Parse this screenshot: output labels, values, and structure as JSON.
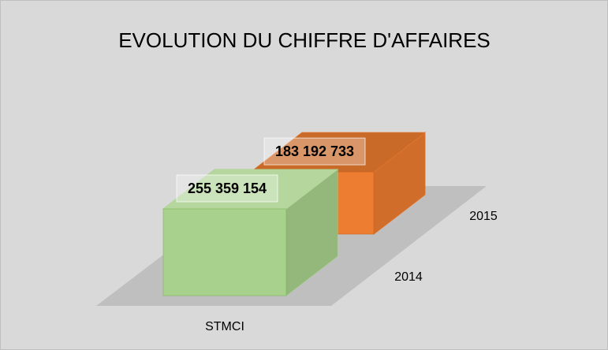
{
  "chart_data": {
    "type": "bar3d",
    "title": "EVOLUTION DU CHIFFRE D'AFFAIRES",
    "categories": [
      "STMCI"
    ],
    "series": [
      {
        "name": "2014",
        "color": "#a9d18e",
        "values": [
          255359154
        ],
        "value_labels": [
          "255 359 154"
        ]
      },
      {
        "name": "2015",
        "color": "#ed7d31",
        "values": [
          183192733
        ],
        "value_labels": [
          "183 192 733"
        ]
      }
    ]
  }
}
